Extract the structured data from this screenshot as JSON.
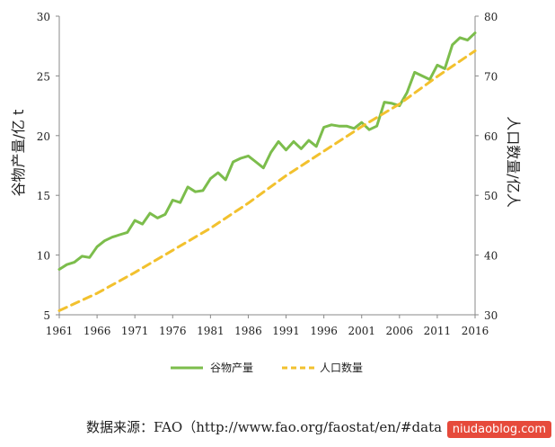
{
  "chart_data": {
    "type": "line",
    "x_ticks": [
      "1961",
      "1966",
      "1971",
      "1976",
      "1981",
      "1986",
      "1991",
      "1996",
      "2001",
      "2006",
      "2011",
      "2016"
    ],
    "y_left_label": "谷物产量/亿 t",
    "y_right_label": "人口数量/亿人",
    "y_left_ticks": [
      "5",
      "10",
      "15",
      "20",
      "25",
      "30"
    ],
    "y_right_ticks": [
      "30",
      "40",
      "50",
      "60",
      "70",
      "80"
    ],
    "ylim_left": [
      5,
      30
    ],
    "ylim_right": [
      30,
      80
    ],
    "xlim": [
      1961,
      2016
    ],
    "grid": false,
    "legend_position": "bottom",
    "series": [
      {
        "name": "谷物产量",
        "axis": "left",
        "style": "solid",
        "color": "#7cbd4c",
        "x": [
          1961,
          1962,
          1963,
          1964,
          1965,
          1966,
          1967,
          1968,
          1969,
          1970,
          1971,
          1972,
          1973,
          1974,
          1975,
          1976,
          1977,
          1978,
          1979,
          1980,
          1981,
          1982,
          1983,
          1984,
          1985,
          1986,
          1987,
          1988,
          1989,
          1990,
          1991,
          1992,
          1993,
          1994,
          1995,
          1996,
          1997,
          1998,
          1999,
          2000,
          2001,
          2002,
          2003,
          2004,
          2005,
          2006,
          2007,
          2008,
          2009,
          2010,
          2011,
          2012,
          2013,
          2014,
          2015,
          2016
        ],
        "values": [
          8.8,
          9.2,
          9.4,
          9.9,
          9.8,
          10.7,
          11.2,
          11.5,
          11.7,
          11.9,
          12.9,
          12.6,
          13.5,
          13.1,
          13.4,
          14.6,
          14.4,
          15.7,
          15.3,
          15.4,
          16.4,
          16.9,
          16.3,
          17.8,
          18.1,
          18.3,
          17.8,
          17.3,
          18.6,
          19.5,
          18.8,
          19.5,
          18.9,
          19.6,
          19.1,
          20.7,
          20.9,
          20.8,
          20.8,
          20.6,
          21.1,
          20.5,
          20.8,
          22.8,
          22.7,
          22.5,
          23.6,
          25.3,
          25.0,
          24.7,
          25.9,
          25.6,
          27.6,
          28.2,
          28.0,
          28.6
        ]
      },
      {
        "name": "人口数量",
        "axis": "right",
        "style": "dashed",
        "color": "#f2c12e",
        "x": [
          1961,
          1966,
          1971,
          1976,
          1981,
          1986,
          1991,
          1996,
          2001,
          2006,
          2011,
          2016
        ],
        "values": [
          30.7,
          33.6,
          37.1,
          40.8,
          44.5,
          48.7,
          53.3,
          57.4,
          61.5,
          65.3,
          69.9,
          74.2
        ]
      }
    ]
  },
  "source_text": "数据来源：FAO（http://www.fao.org/faostat/en/#data",
  "watermark_text": "niudaoblog.com"
}
